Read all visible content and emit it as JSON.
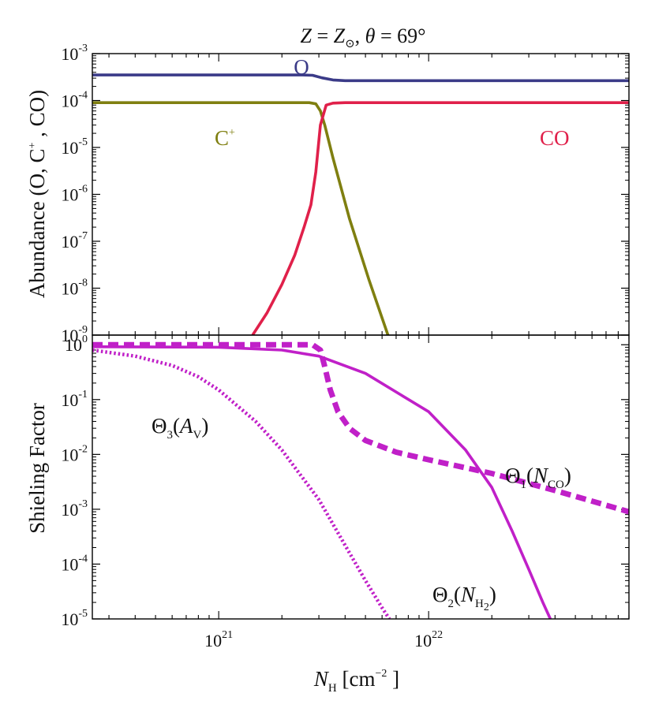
{
  "chart_data": [
    {
      "type": "line",
      "panel": "top",
      "title": "Z = Z⊙, θ = 69°",
      "title_parts": {
        "lhs": "Z",
        "eq": " = ",
        "rhs": "Z",
        "rhs_sub": "⊙",
        "sep": ", ",
        "theta": "θ",
        "eq2": " = ",
        "theta_val": "69°"
      },
      "xscale": "log",
      "yscale": "log",
      "xlim": [
        2.5e+20,
        9e+22
      ],
      "ylim": [
        1e-09,
        0.001
      ],
      "ylabel": "Abundance (O, C⁺ , CO)",
      "ylabel_parts": {
        "pre": "Abundance (O, C",
        "sup": "+",
        "post": " , CO)"
      },
      "ytick_labels": [
        {
          "base": "10",
          "exp": "-3"
        },
        {
          "base": "10",
          "exp": "-4"
        },
        {
          "base": "10",
          "exp": "-5"
        },
        {
          "base": "10",
          "exp": "-6"
        },
        {
          "base": "10",
          "exp": "-7"
        },
        {
          "base": "10",
          "exp": "-8"
        },
        {
          "base": "10",
          "exp": "-9"
        }
      ],
      "series": [
        {
          "name": "O",
          "label": "O",
          "color": "#3b3b88",
          "style": "solid",
          "x": [
            2.5e+20,
            2.5e+21,
            2.8e+21,
            3.1e+21,
            3.5e+21,
            4e+21,
            9e+22
          ],
          "y": [
            0.00035,
            0.00035,
            0.000345,
            0.000305,
            0.000275,
            0.000265,
            0.000265
          ]
        },
        {
          "name": "C+",
          "label": "C",
          "label_sup": "+",
          "color": "#7f7f10",
          "style": "solid",
          "x": [
            2.5e+20,
            2.7e+21,
            2.9e+21,
            3.05e+21,
            3.2e+21,
            3.5e+21,
            4.2e+21,
            5.2e+21,
            6.4e+21
          ],
          "y": [
            9e-05,
            9e-05,
            8.5e-05,
            6e-05,
            3e-05,
            6e-06,
            3e-07,
            1.5e-08,
            1e-09
          ]
        },
        {
          "name": "CO",
          "label": "CO",
          "color": "#e0204a",
          "style": "solid",
          "x": [
            1.45e+21,
            1.7e+21,
            2e+21,
            2.3e+21,
            2.55e+21,
            2.75e+21,
            2.9e+21,
            3.05e+21,
            3.25e+21,
            3.5e+21,
            4e+21,
            5e+21,
            9e+22
          ],
          "y": [
            1e-09,
            3e-09,
            1.2e-08,
            5e-08,
            2e-07,
            6e-07,
            3e-06,
            3e-05,
            8e-05,
            8.8e-05,
            9e-05,
            9e-05,
            9e-05
          ]
        }
      ]
    },
    {
      "type": "line",
      "panel": "bottom",
      "xscale": "log",
      "yscale": "log",
      "xlim": [
        2.5e+20,
        9e+22
      ],
      "ylim": [
        1e-05,
        1.5
      ],
      "xlabel": "N_H [cm^-2]",
      "xlabel_parts": {
        "sym": "N",
        "sub": "H",
        "pre": " [cm",
        "sup": "−2",
        "post": " ]"
      },
      "ylabel": "Shieling Factor",
      "xtick_labels": [
        {
          "base": "10",
          "exp": "21"
        },
        {
          "base": "10",
          "exp": "22"
        }
      ],
      "ytick_labels": [
        {
          "base": "10",
          "exp": "0"
        },
        {
          "base": "10",
          "exp": "-1"
        },
        {
          "base": "10",
          "exp": "-2"
        },
        {
          "base": "10",
          "exp": "-3"
        },
        {
          "base": "10",
          "exp": "-4"
        },
        {
          "base": "10",
          "exp": "-5"
        }
      ],
      "series": [
        {
          "name": "Theta1(N_CO)",
          "label": "Θ",
          "label_sub": "1",
          "arg": "N",
          "arg_sub": "CO",
          "color": "#c020c8",
          "style": "dashed",
          "x": [
            2.5e+20,
            1e+21,
            2.8e+21,
            3.05e+21,
            3.2e+21,
            3.4e+21,
            3.7e+21,
            4.2e+21,
            5e+21,
            7e+21,
            1e+22,
            2e+22,
            4e+22,
            9e+22
          ],
          "y": [
            1,
            1,
            1,
            0.8,
            0.4,
            0.15,
            0.06,
            0.03,
            0.018,
            0.011,
            0.008,
            0.0045,
            0.0022,
            0.0009
          ]
        },
        {
          "name": "Theta2(N_H2)",
          "label": "Θ",
          "label_sub": "2",
          "arg": "N",
          "arg_sub": "H",
          "arg_subsub": "2",
          "color": "#c020c8",
          "style": "solid",
          "x": [
            2.5e+20,
            1e+21,
            2e+21,
            3e+21,
            5e+21,
            1e+22,
            1.5e+22,
            2e+22,
            2.5e+22,
            3e+22,
            3.5e+22,
            3.8e+22
          ],
          "y": [
            0.92,
            0.9,
            0.8,
            0.62,
            0.3,
            0.06,
            0.012,
            0.0025,
            0.0004,
            8e-05,
            2e-05,
            1e-05
          ]
        },
        {
          "name": "Theta3(A_V)",
          "label": "Θ",
          "label_sub": "3",
          "arg": "A",
          "arg_sub": "V",
          "color": "#c020c8",
          "style": "dotted",
          "x": [
            2.5e+20,
            4e+20,
            6e+20,
            8e+20,
            1e+21,
            1.5e+21,
            2e+21,
            3e+21,
            4e+21,
            5e+21,
            6e+21,
            6.5e+21
          ],
          "y": [
            0.8,
            0.62,
            0.42,
            0.26,
            0.15,
            0.04,
            0.012,
            0.0015,
            0.00022,
            5e-05,
            1.6e-05,
            1e-05
          ]
        }
      ]
    }
  ]
}
